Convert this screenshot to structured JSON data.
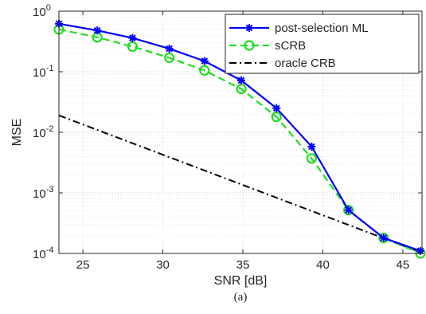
{
  "chart_data": {
    "type": "line",
    "xlabel": "SNR [dB]",
    "ylabel": "MSE",
    "caption": "(a)",
    "xlim": [
      23.5,
      46.2
    ],
    "ylim": [
      0.0001,
      1
    ],
    "yscale": "log",
    "grid": true,
    "legend_position": "top-right",
    "x_ticks": [
      25,
      30,
      35,
      40,
      45
    ],
    "x_tick_labels": [
      "25",
      "30",
      "35",
      "40",
      "45"
    ],
    "y_ticks": [
      0.0001,
      0.001,
      0.01,
      0.1,
      1
    ],
    "y_tick_labels": [
      {
        "base": "10",
        "exp": "-4"
      },
      {
        "base": "10",
        "exp": "-3"
      },
      {
        "base": "10",
        "exp": "-2"
      },
      {
        "base": "10",
        "exp": "-1"
      },
      {
        "base": "10",
        "exp": "0"
      }
    ],
    "series": [
      {
        "name": "post-selection ML",
        "color": "#0000ff",
        "line": "solid",
        "marker": "asterisk",
        "x": [
          23.5,
          25.9,
          28.1,
          30.4,
          32.6,
          34.9,
          37.1,
          39.3,
          41.6,
          43.8,
          46.1
        ],
        "y": [
          0.62,
          0.48,
          0.36,
          0.24,
          0.15,
          0.072,
          0.025,
          0.0058,
          0.00052,
          0.00018,
          0.00011
        ]
      },
      {
        "name": "sCRB",
        "color": "#22dd22",
        "line": "dashed",
        "marker": "circle",
        "x": [
          23.5,
          25.9,
          28.1,
          30.4,
          32.6,
          34.9,
          37.1,
          39.3,
          41.6,
          43.8,
          46.1
        ],
        "y": [
          0.5,
          0.37,
          0.26,
          0.17,
          0.105,
          0.052,
          0.018,
          0.0037,
          0.00052,
          0.00018,
          0.0001
        ]
      },
      {
        "name": "oracle CRB",
        "color": "#000000",
        "line": "dashdot",
        "marker": "none",
        "x": [
          23.5,
          46.1
        ],
        "y": [
          0.019,
          0.000105
        ]
      }
    ]
  }
}
